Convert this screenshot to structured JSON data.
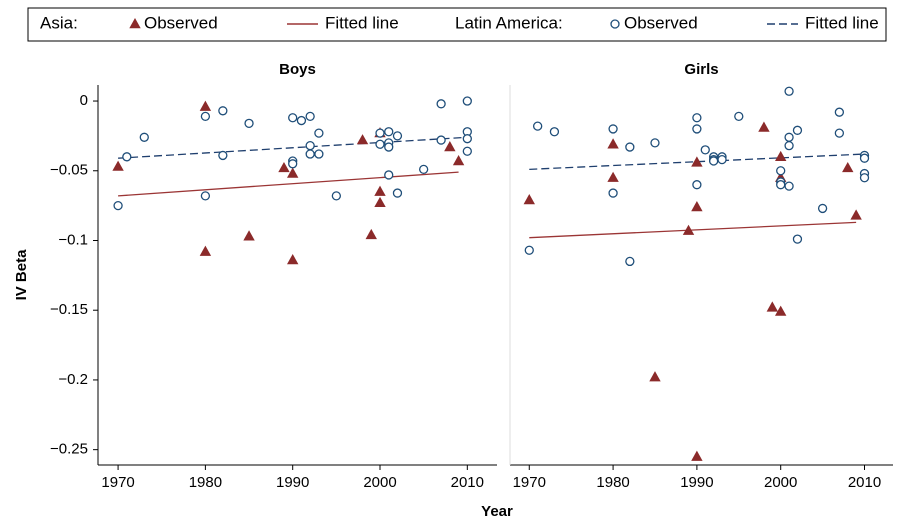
{
  "legend": {
    "groups": [
      {
        "label": "Asia:"
      },
      {
        "label": "Latin America:"
      }
    ]
  },
  "xlabel": "Year",
  "ylabel": "IV Beta",
  "chart_data": [
    {
      "type": "scatter",
      "title": "Boys",
      "xlim": [
        1967.7,
        2013.4
      ],
      "ylim": [
        -0.261,
        0.0115
      ],
      "xticks": [
        1970,
        1980,
        1990,
        2000,
        2010
      ],
      "yticks": [
        0,
        {
          "value": -0.05,
          "label": "−0.05"
        },
        {
          "value": -0.1,
          "label": "−0.1"
        },
        {
          "value": -0.15,
          "label": "−0.15"
        },
        {
          "value": -0.2,
          "label": "−0.2"
        },
        {
          "value": -0.25,
          "label": "−0.25"
        }
      ],
      "series": [
        {
          "name": "Observed",
          "color": "#8b2a2a",
          "marker": "triangle",
          "x": [
            1970,
            1980,
            1980,
            1985,
            1989,
            1990,
            1990,
            1998,
            1999,
            2000,
            2000,
            2000,
            2008,
            2009
          ],
          "values": [
            -0.047,
            -0.004,
            -0.108,
            -0.097,
            -0.048,
            -0.052,
            -0.114,
            -0.028,
            -0.096,
            -0.065,
            -0.073,
            -0.023,
            -0.033,
            -0.043
          ]
        },
        {
          "name": "Fitted line",
          "color": "#9b3535",
          "line": "solid",
          "x": [
            1970,
            2009
          ],
          "values": [
            -0.068,
            -0.051
          ]
        },
        {
          "name": "Observed",
          "color": "#1f4e79",
          "marker": "circle",
          "x": [
            1970,
            1971,
            1973,
            1980,
            1980,
            1982,
            1982,
            1985,
            1990,
            1990,
            1990,
            1991,
            1992,
            1992,
            1992,
            1993,
            1993,
            1995,
            2000,
            2000,
            2001,
            2001,
            2001,
            2001,
            2002,
            2002,
            2005,
            2007,
            2007,
            2010,
            2010,
            2010,
            2010
          ],
          "values": [
            -0.075,
            -0.04,
            -0.026,
            -0.011,
            -0.068,
            -0.007,
            -0.039,
            -0.016,
            -0.012,
            -0.043,
            -0.045,
            -0.014,
            -0.011,
            -0.032,
            -0.038,
            -0.023,
            -0.038,
            -0.068,
            -0.023,
            -0.031,
            -0.022,
            -0.03,
            -0.033,
            -0.053,
            -0.025,
            -0.066,
            -0.049,
            -0.002,
            -0.028,
            0,
            -0.022,
            -0.027,
            -0.036
          ]
        },
        {
          "name": "Fitted line",
          "color": "#1f3f6e",
          "line": "dashed",
          "x": [
            1970,
            2010
          ],
          "values": [
            -0.041,
            -0.026
          ]
        }
      ]
    },
    {
      "type": "scatter",
      "title": "Girls",
      "xlim": [
        1967.7,
        2013.4
      ],
      "ylim": [
        -0.261,
        0.0115
      ],
      "xticks": [
        1970,
        1980,
        1990,
        2000,
        2010
      ],
      "series": [
        {
          "name": "Observed",
          "color": "#8b2a2a",
          "marker": "triangle",
          "x": [
            1970,
            1980,
            1980,
            1985,
            1989,
            1990,
            1990,
            1990,
            1998,
            1999,
            2000,
            2000,
            2000,
            2008,
            2009
          ],
          "values": [
            -0.071,
            -0.031,
            -0.055,
            -0.198,
            -0.093,
            -0.044,
            -0.076,
            -0.255,
            -0.019,
            -0.148,
            -0.04,
            -0.055,
            -0.151,
            -0.048,
            -0.082
          ]
        },
        {
          "name": "Fitted line",
          "color": "#9b3535",
          "line": "solid",
          "x": [
            1970,
            2009
          ],
          "values": [
            -0.098,
            -0.087
          ]
        },
        {
          "name": "Observed",
          "color": "#1f4e79",
          "marker": "circle",
          "x": [
            1970,
            1971,
            1973,
            1980,
            1980,
            1982,
            1982,
            1985,
            1990,
            1990,
            1990,
            1991,
            1992,
            1992,
            1992,
            1993,
            1993,
            1995,
            2000,
            2000,
            2000,
            2001,
            2001,
            2001,
            2001,
            2002,
            2002,
            2005,
            2007,
            2007,
            2010,
            2010,
            2010,
            2010
          ],
          "values": [
            -0.107,
            -0.018,
            -0.022,
            -0.02,
            -0.066,
            -0.033,
            -0.115,
            -0.03,
            -0.012,
            -0.02,
            -0.06,
            -0.035,
            -0.04,
            -0.042,
            -0.043,
            -0.04,
            -0.042,
            -0.011,
            -0.05,
            -0.058,
            -0.06,
            0.007,
            -0.026,
            -0.032,
            -0.061,
            -0.021,
            -0.099,
            -0.077,
            -0.008,
            -0.023,
            -0.039,
            -0.041,
            -0.052,
            -0.055
          ]
        },
        {
          "name": "Fitted line",
          "color": "#1f3f6e",
          "line": "dashed",
          "x": [
            1970,
            2010
          ],
          "values": [
            -0.049,
            -0.038
          ]
        }
      ]
    }
  ]
}
